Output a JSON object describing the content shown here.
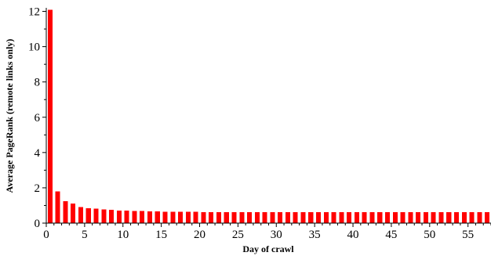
{
  "chart_data": {
    "type": "bar",
    "xlabel": "Day of crawl",
    "ylabel": "Average PageRank (remote links only)",
    "xlim": [
      0,
      58
    ],
    "ylim": [
      0,
      12.2
    ],
    "x_ticks": [
      0,
      5,
      10,
      15,
      20,
      25,
      30,
      35,
      40,
      45,
      50,
      55
    ],
    "y_ticks": [
      0,
      2,
      4,
      6,
      8,
      10,
      12
    ],
    "bar_color": "#ff0000",
    "grid": false,
    "legend": "none",
    "x": [
      0,
      1,
      2,
      3,
      4,
      5,
      6,
      7,
      8,
      9,
      10,
      11,
      12,
      13,
      14,
      15,
      16,
      17,
      18,
      19,
      20,
      21,
      22,
      23,
      24,
      25,
      26,
      27,
      28,
      29,
      30,
      31,
      32,
      33,
      34,
      35,
      36,
      37,
      38,
      39,
      40,
      41,
      42,
      43,
      44,
      45,
      46,
      47,
      48,
      49,
      50,
      51,
      52,
      53,
      54,
      55,
      56,
      57
    ],
    "values": [
      12.1,
      1.8,
      1.25,
      1.1,
      0.92,
      0.85,
      0.82,
      0.78,
      0.75,
      0.72,
      0.7,
      0.69,
      0.68,
      0.67,
      0.66,
      0.65,
      0.65,
      0.64,
      0.64,
      0.64,
      0.63,
      0.63,
      0.63,
      0.63,
      0.62,
      0.62,
      0.62,
      0.62,
      0.62,
      0.62,
      0.62,
      0.62,
      0.62,
      0.62,
      0.62,
      0.62,
      0.62,
      0.62,
      0.62,
      0.62,
      0.62,
      0.62,
      0.62,
      0.62,
      0.62,
      0.62,
      0.62,
      0.62,
      0.62,
      0.62,
      0.62,
      0.62,
      0.62,
      0.62,
      0.62,
      0.62,
      0.62,
      0.62
    ]
  }
}
